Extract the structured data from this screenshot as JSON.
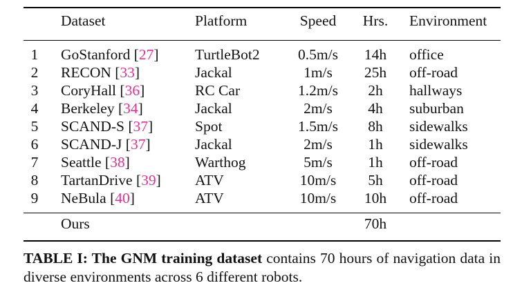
{
  "table": {
    "headers": {
      "dataset": "Dataset",
      "platform": "Platform",
      "speed": "Speed",
      "hours": "Hrs.",
      "environment": "Environment"
    },
    "rows": [
      {
        "idx": "1",
        "name": "GoStanford",
        "ref": "27",
        "platform": "TurtleBot2",
        "speed": "0.5m/s",
        "hours": "14h",
        "environment": "office"
      },
      {
        "idx": "2",
        "name": "RECON",
        "ref": "33",
        "platform": "Jackal",
        "speed": "1m/s",
        "hours": "25h",
        "environment": "off-road"
      },
      {
        "idx": "3",
        "name": "CoryHall",
        "ref": "36",
        "platform": "RC Car",
        "speed": "1.2m/s",
        "hours": "2h",
        "environment": "hallways"
      },
      {
        "idx": "4",
        "name": "Berkeley",
        "ref": "34",
        "platform": "Jackal",
        "speed": "2m/s",
        "hours": "4h",
        "environment": "suburban"
      },
      {
        "idx": "5",
        "name": "SCAND-S",
        "ref": "37",
        "platform": "Spot",
        "speed": "1.5m/s",
        "hours": "8h",
        "environment": "sidewalks"
      },
      {
        "idx": "6",
        "name": "SCAND-J",
        "ref": "37",
        "platform": "Jackal",
        "speed": "2m/s",
        "hours": "1h",
        "environment": "sidewalks"
      },
      {
        "idx": "7",
        "name": "Seattle",
        "ref": "38",
        "platform": "Warthog",
        "speed": "5m/s",
        "hours": "1h",
        "environment": "off-road"
      },
      {
        "idx": "8",
        "name": "TartanDrive",
        "ref": "39",
        "platform": "ATV",
        "speed": "10m/s",
        "hours": "5h",
        "environment": "off-road"
      },
      {
        "idx": "9",
        "name": "NeBula",
        "ref": "40",
        "platform": "ATV",
        "speed": "10m/s",
        "hours": "10h",
        "environment": "off-road"
      }
    ],
    "total": {
      "name": "Ours",
      "hours": "70h"
    }
  },
  "caption": {
    "bold": "TABLE I: The GNM training dataset",
    "rest": " contains 70 hours of navigation data in diverse environments across 6 different robots."
  },
  "colors": {
    "citation": "#e0318f"
  }
}
